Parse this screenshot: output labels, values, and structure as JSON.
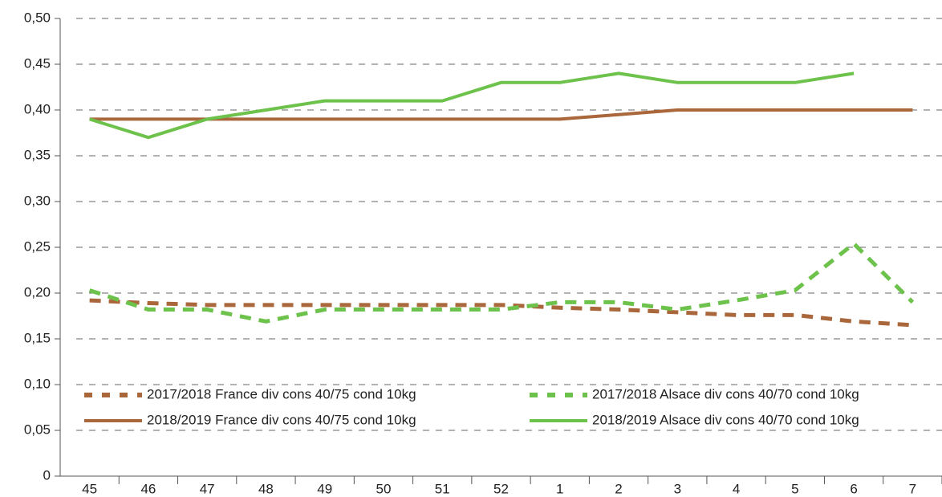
{
  "chart_data": {
    "type": "line",
    "categories": [
      "45",
      "46",
      "47",
      "48",
      "49",
      "50",
      "51",
      "52",
      "1",
      "2",
      "3",
      "4",
      "5",
      "6",
      "7"
    ],
    "ylim": [
      0,
      0.5
    ],
    "yticks": [
      0,
      {
        "value": 0.05,
        "label": "0,05"
      },
      {
        "value": 0.1,
        "label": "0,10"
      },
      {
        "value": 0.15,
        "label": "0,15"
      },
      {
        "value": 0.2,
        "label": "0,20"
      },
      {
        "value": 0.25,
        "label": "0,25"
      },
      {
        "value": 0.3,
        "label": "0,30"
      },
      {
        "value": 0.35,
        "label": "0,35"
      },
      {
        "value": 0.4,
        "label": "0,40"
      },
      {
        "value": 0.45,
        "label": "0,45"
      },
      {
        "value": 0.5,
        "label": "0,50"
      }
    ],
    "grid": true,
    "series": [
      {
        "name": "2017/2018 France div cons 40/75 cond 10kg",
        "color": "#a9673b",
        "style": "dashed",
        "values": [
          0.192,
          0.189,
          0.187,
          0.187,
          0.187,
          0.187,
          0.187,
          0.187,
          0.184,
          0.182,
          0.179,
          0.176,
          0.176,
          0.169,
          0.165
        ]
      },
      {
        "name": "2017/2018 Alsace div cons 40/70 cond 10kg",
        "color": "#6cc24a",
        "style": "dashed",
        "values": [
          0.203,
          0.182,
          0.182,
          0.169,
          0.182,
          0.182,
          0.182,
          0.182,
          0.19,
          0.19,
          0.182,
          0.192,
          0.203,
          0.254,
          0.19
        ]
      },
      {
        "name": "2018/2019 France div cons 40/75 cond 10kg",
        "color": "#a9673b",
        "style": "solid",
        "values": [
          0.39,
          0.39,
          0.39,
          0.39,
          0.39,
          0.39,
          0.39,
          0.39,
          0.39,
          0.395,
          0.4,
          0.4,
          0.4,
          0.4,
          0.4
        ]
      },
      {
        "name": "2018/2019 Alsace div cons 40/70 cond 10kg",
        "color": "#6cc24a",
        "style": "solid",
        "values": [
          0.39,
          0.37,
          0.39,
          0.4,
          0.41,
          0.41,
          0.41,
          0.43,
          0.43,
          0.44,
          0.43,
          0.43,
          0.43,
          0.44,
          null
        ]
      }
    ]
  }
}
